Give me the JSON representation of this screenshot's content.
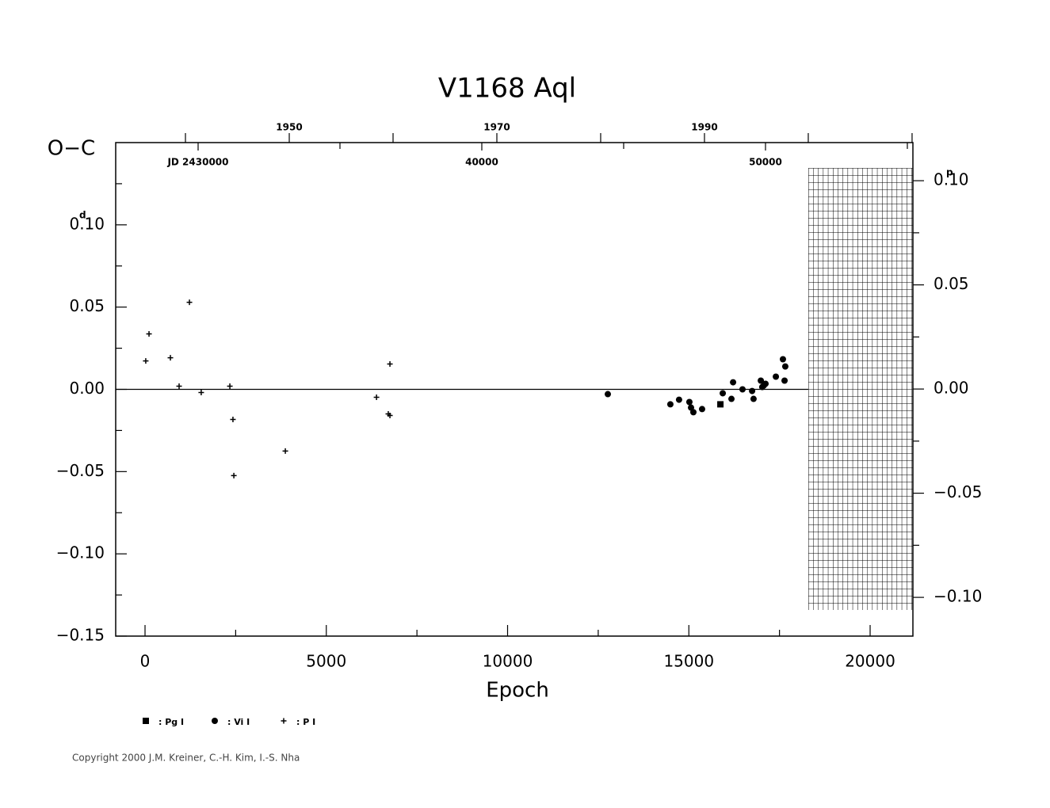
{
  "chart_data": {
    "type": "scatter",
    "title": "V1168  Aql",
    "y_label": "O−C",
    "x_label": "Epoch",
    "y_unit": "d",
    "y2_unit": "p",
    "copyright": "Copyright 2000 J.M. Kreiner, C.-H. Kim, I.-S. Nha",
    "xlim": [
      -809,
      21180
    ],
    "xticks": [
      0,
      5000,
      10000,
      15000,
      20000
    ],
    "xminor": [
      2500,
      7500,
      12500,
      17500
    ],
    "ylim": [
      -0.15,
      0.15
    ],
    "yticks": [
      {
        "value": 0.1,
        "label": "0.10"
      },
      {
        "value": 0.05,
        "label": "0.05"
      },
      {
        "value": 0.0,
        "label": "0.00"
      },
      {
        "value": -0.05,
        "label": "−0.05"
      },
      {
        "value": -0.1,
        "label": "−0.10"
      },
      {
        "value": -0.15,
        "label": "−0.15"
      }
    ],
    "yminor": [
      0.125,
      0.075,
      0.025,
      -0.025,
      -0.075,
      -0.125
    ],
    "y2lim": [
      -0.1186,
      0.1183
    ],
    "y2ticks": [
      {
        "value": 0.1,
        "label": "0.10"
      },
      {
        "value": 0.05,
        "label": "0.05"
      },
      {
        "value": 0.0,
        "label": "0.00"
      },
      {
        "value": -0.05,
        "label": "−0.05"
      },
      {
        "value": -0.1,
        "label": "−0.10"
      }
    ],
    "y2minor": [
      0.075,
      0.025,
      -0.025,
      -0.075
    ],
    "year_axis": {
      "xlim": [
        1933.28,
        2010.08
      ],
      "xticks": [
        1950,
        1970,
        1990
      ],
      "xminor": [
        1940,
        1960,
        1980,
        2000,
        2010
      ]
    },
    "jd_axis": {
      "xlim": [
        27095,
        55196
      ],
      "xticks": [
        {
          "value": 30000,
          "label": "JD  2430000"
        },
        {
          "value": 40000,
          "label": "40000"
        },
        {
          "value": 50000,
          "label": "50000"
        }
      ],
      "xminor": [
        35000,
        45000,
        55000
      ]
    },
    "series": [
      {
        "name": ": Pg I",
        "color": "#000000",
        "marker": "square",
        "x": [
          15870
        ],
        "values": [
          -0.0091
        ]
      },
      {
        "name": ": Vi I",
        "color": "#000000",
        "marker": "circle",
        "x": [
          12765,
          14490,
          14730,
          15015,
          15060,
          15125,
          15365,
          15935,
          16175,
          16220,
          16480,
          16745,
          16785,
          16985,
          17025,
          17070,
          17115,
          17400,
          17595,
          17640,
          17660
        ],
        "values": [
          -0.0029,
          -0.0091,
          -0.0063,
          -0.0077,
          -0.0111,
          -0.0139,
          -0.012,
          -0.0024,
          -0.0058,
          0.0043,
          0.0,
          -0.001,
          -0.0058,
          0.0053,
          0.0014,
          0.0024,
          0.0034,
          0.0077,
          0.0183,
          0.0053,
          0.0139
        ]
      },
      {
        "name": ": P I",
        "color": "#000000",
        "marker": "plus",
        "x": [
          20,
          110,
          700,
          940,
          1225,
          1550,
          2340,
          2425,
          2450,
          3870,
          6385,
          6710,
          6755,
          6755
        ],
        "values": [
          0.0173,
          0.0337,
          0.0192,
          0.0019,
          0.0529,
          -0.0019,
          0.0019,
          -0.0183,
          -0.0524,
          -0.0375,
          -0.0048,
          -0.0149,
          0.0154,
          -0.0159
        ]
      }
    ]
  }
}
